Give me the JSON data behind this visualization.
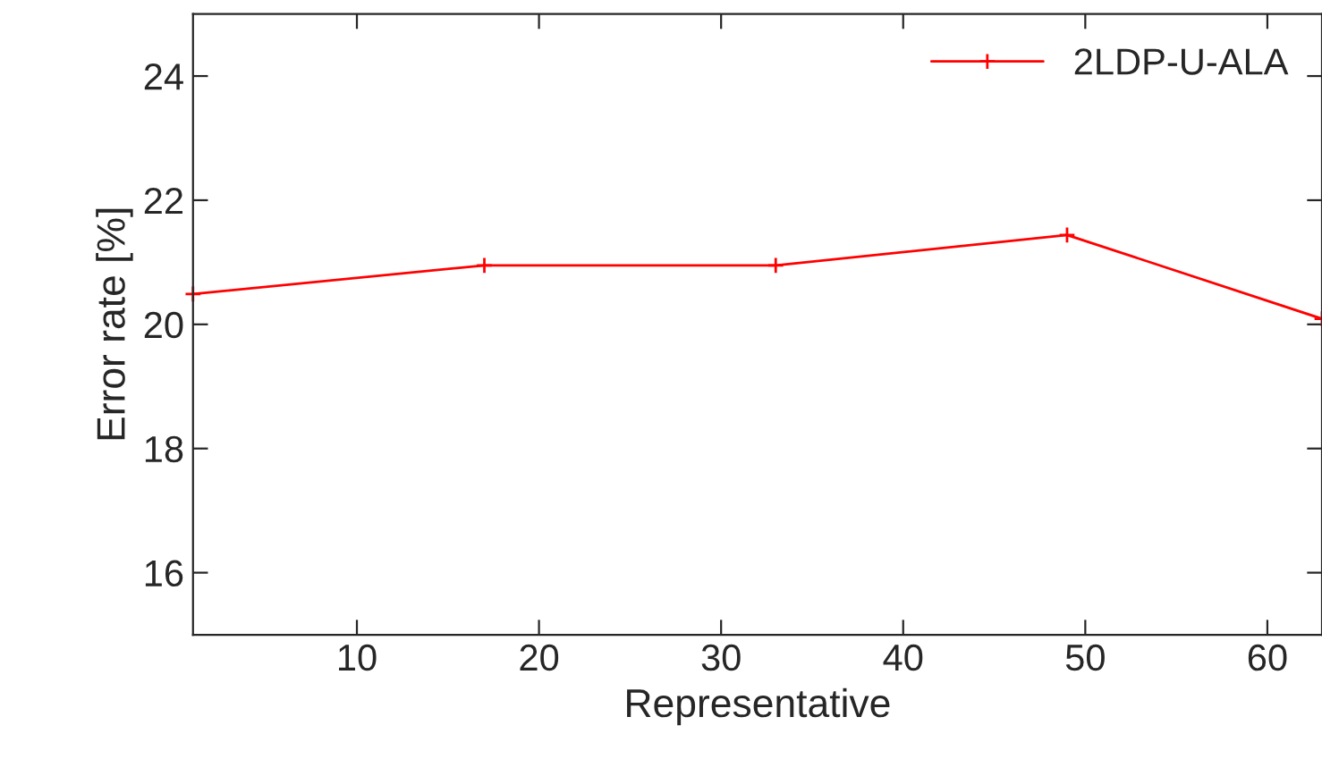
{
  "chart_data": {
    "type": "line",
    "xlabel": "Representative",
    "ylabel": "Error rate [%]",
    "series": [
      {
        "name": "2LDP-U-ALA",
        "color": "#ff0000",
        "x": [
          1,
          17,
          33,
          49,
          63
        ],
        "values": [
          20.49,
          20.95,
          20.95,
          21.44,
          20.09
        ]
      }
    ],
    "xlim": [
      1,
      63
    ],
    "ylim": [
      15,
      25
    ],
    "xticks": [
      10,
      20,
      30,
      40,
      50,
      60
    ],
    "yticks": [
      16,
      18,
      20,
      22,
      24
    ],
    "grid": false,
    "legend": "top right",
    "marker": "cross",
    "line_style": "solid"
  }
}
